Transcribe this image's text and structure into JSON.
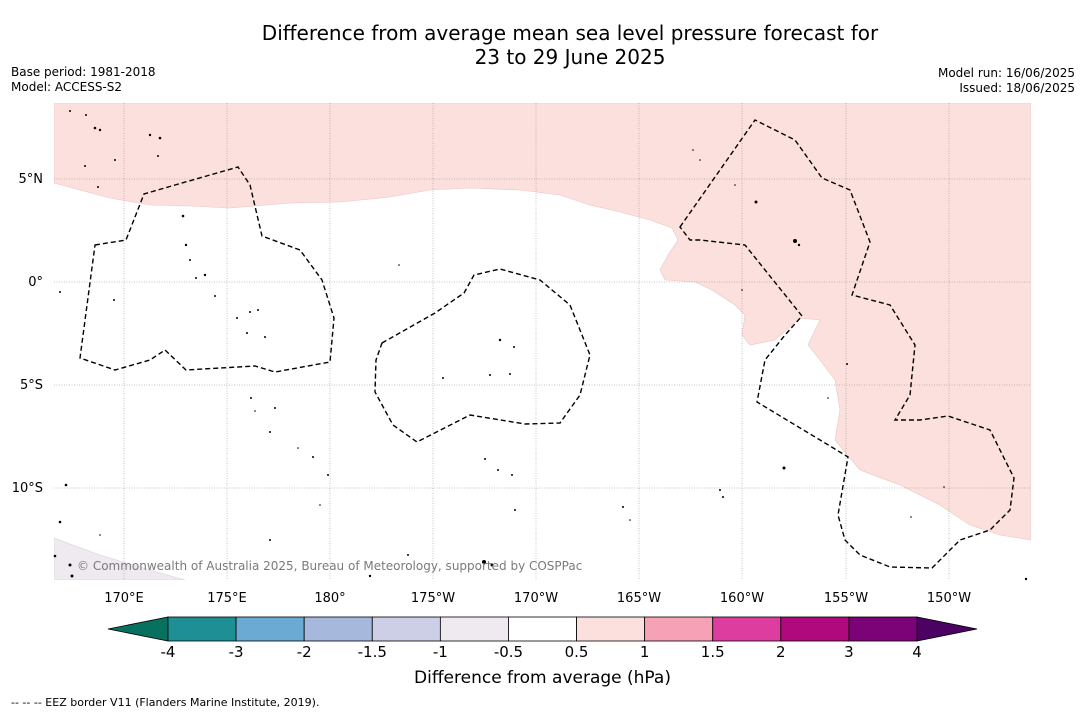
{
  "header": {
    "title_line1": "Difference from average mean sea level pressure forecast for",
    "title_line2": "23 to 29 June 2025",
    "base_period": "Base period: 1981-2018",
    "model": "Model: ACCESS-S2",
    "model_run": "Model run: 16/06/2025",
    "issued": "Issued: 18/06/2025"
  },
  "map": {
    "lon_labels": [
      "170°E",
      "175°E",
      "180°",
      "175°W",
      "170°W",
      "165°W",
      "160°W",
      "155°W",
      "150°W"
    ],
    "lat_labels": [
      "5°N",
      "0°",
      "5°S",
      "10°S"
    ],
    "copyright": "© Commonwealth of Australia 2025, Bureau of Meteorology, supported by COSPPac",
    "colors": {
      "pink_0.5_to_1": "#fce0dd",
      "lavender_-0.5_to_-1": "#efe9f0",
      "eez_border": "#000000"
    }
  },
  "colorbar": {
    "title": "Difference from average (hPa)",
    "ticks": [
      "-4",
      "-3",
      "-2",
      "-1.5",
      "-1",
      "-0.5",
      "0.5",
      "1",
      "1.5",
      "2",
      "3",
      "4"
    ],
    "colors": [
      "#1e9095",
      "#6aaad3",
      "#a6b8dc",
      "#cccfe6",
      "#efe9f0",
      "#ffffff",
      "#fce0dd",
      "#f7a1b7",
      "#dc3d9f",
      "#b0097d",
      "#7b0277"
    ],
    "extend_low_color": "#07705f",
    "extend_high_color": "#4b0262"
  },
  "footer": {
    "legend_text": "--  --  -- EEZ border V11 (Flanders Marine Institute, 2019)."
  }
}
